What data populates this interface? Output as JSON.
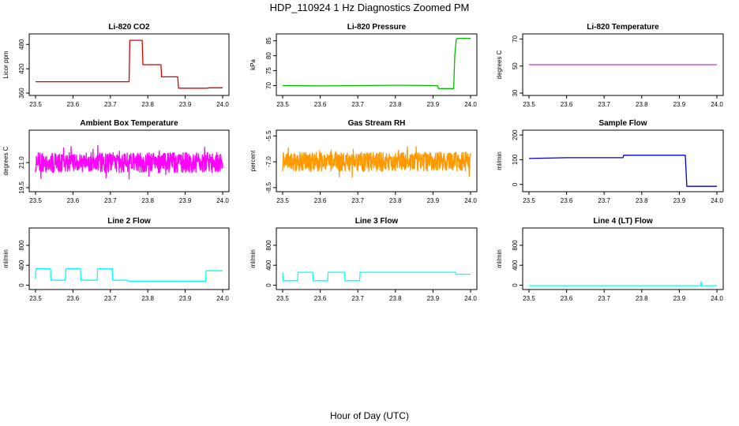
{
  "figure": {
    "title": "HDP_110924  1 Hz Diagnostics Zoomed PM",
    "xlabel": "Hour of Day (UTC)"
  },
  "chart_data": [
    {
      "id": "co2",
      "type": "line",
      "title": "Li-820 CO2",
      "ylabel": "Licor ppm",
      "color": "#dd0000",
      "xlim": [
        23.5,
        24.0
      ],
      "xticks": [
        "23.5",
        "23.6",
        "23.7",
        "23.8",
        "23.9",
        "24.0"
      ],
      "ylim": [
        360,
        500
      ],
      "yticks": [
        "360",
        "420",
        "480"
      ],
      "style": "step",
      "x": [
        23.5,
        23.75,
        23.752,
        23.785,
        23.787,
        23.835,
        23.837,
        23.88,
        23.882,
        23.96,
        23.962,
        24.0
      ],
      "y": [
        388,
        388,
        490,
        490,
        430,
        430,
        400,
        400,
        372,
        372,
        373,
        373
      ]
    },
    {
      "id": "pressure",
      "type": "line",
      "title": "Li-820 Pressure",
      "ylabel": "kPa",
      "color": "#00bb00",
      "xlim": [
        23.5,
        24.0
      ],
      "xticks": [
        "23.5",
        "23.6",
        "23.7",
        "23.8",
        "23.9",
        "24.0"
      ],
      "ylim": [
        67.5,
        86.5
      ],
      "yticks": [
        "70",
        "75",
        "80",
        "85"
      ],
      "style": "step",
      "x": [
        23.5,
        23.6,
        23.7,
        23.8,
        23.912,
        23.915,
        23.955,
        23.958,
        23.962,
        23.965,
        24.0
      ],
      "y": [
        70,
        69.9,
        70,
        70.1,
        70,
        69,
        69,
        80,
        85.5,
        85.8,
        85.8
      ]
    },
    {
      "id": "li820temp",
      "type": "line",
      "title": "Li-820 Temperature",
      "ylabel": "degrees C",
      "color": "#cc33cc",
      "xlim": [
        23.5,
        24.0
      ],
      "xticks": [
        "23.5",
        "23.6",
        "23.7",
        "23.8",
        "23.9",
        "24.0"
      ],
      "ylim": [
        30,
        72
      ],
      "yticks": [
        "30",
        "50",
        "70"
      ],
      "style": "line",
      "x": [
        23.5,
        24.0
      ],
      "y": [
        51,
        51
      ]
    },
    {
      "id": "ambbox",
      "type": "line",
      "title": "Ambient Box Temperature",
      "ylabel": "degrees C",
      "color": "#ff00ff",
      "xlim": [
        23.5,
        24.0
      ],
      "xticks": [
        "23.5",
        "23.6",
        "23.7",
        "23.8",
        "23.9",
        "24.0"
      ],
      "ylim": [
        19.4,
        22.8
      ],
      "yticks": [
        "19.5",
        "21.0"
      ],
      "style": "noise",
      "noise": {
        "base": 21.0,
        "amp": 0.6,
        "spike": 1.1
      }
    },
    {
      "id": "rh",
      "type": "line",
      "title": "Gas Stream RH",
      "ylabel": "percent",
      "color": "#ff9900",
      "xlim": [
        23.5,
        24.0
      ],
      "xticks": [
        "23.5",
        "23.6",
        "23.7",
        "23.8",
        "23.9",
        "24.0"
      ],
      "ylim": [
        -8.6,
        -5.3
      ],
      "yticks": [
        "-8.5",
        "-7.0",
        "-5.5"
      ],
      "style": "noise",
      "noise": {
        "base": -7.0,
        "amp": 0.55,
        "spike": 0.9
      }
    },
    {
      "id": "sample",
      "type": "line",
      "title": "Sample Flow",
      "ylabel": "ml/min",
      "color": "#0000cc",
      "xlim": [
        23.5,
        24.0
      ],
      "xticks": [
        "23.5",
        "23.6",
        "23.7",
        "23.8",
        "23.9",
        "24.0"
      ],
      "ylim": [
        -20,
        210
      ],
      "yticks": [
        "0",
        "100",
        "200"
      ],
      "style": "step",
      "x": [
        23.5,
        23.6,
        23.75,
        23.752,
        23.916,
        23.92,
        24.0
      ],
      "y": [
        105,
        108,
        108,
        118,
        118,
        -8,
        -8
      ]
    },
    {
      "id": "line2",
      "type": "line",
      "title": "Line 2 Flow",
      "ylabel": "ml/min",
      "color": "#00ffff",
      "xlim": [
        23.5,
        24.0
      ],
      "xticks": [
        "23.5",
        "23.6",
        "23.7",
        "23.8",
        "23.9",
        "24.0"
      ],
      "ylim": [
        -40,
        1100
      ],
      "yticks": [
        "0",
        "400",
        "800"
      ],
      "style": "step",
      "x": [
        23.5,
        23.501,
        23.54,
        23.541,
        23.58,
        23.581,
        23.62,
        23.621,
        23.665,
        23.666,
        23.705,
        23.706,
        23.745,
        23.746,
        23.955,
        23.956,
        24.0
      ],
      "y": [
        120,
        330,
        330,
        100,
        100,
        330,
        330,
        100,
        100,
        330,
        330,
        100,
        100,
        80,
        80,
        290,
        290
      ]
    },
    {
      "id": "line3",
      "type": "line",
      "title": "Line 3 Flow",
      "ylabel": "ml/min",
      "color": "#00ffff",
      "xlim": [
        23.5,
        24.0
      ],
      "xticks": [
        "23.5",
        "23.6",
        "23.7",
        "23.8",
        "23.9",
        "24.0"
      ],
      "ylim": [
        -40,
        1100
      ],
      "yticks": [
        "0",
        "400",
        "800"
      ],
      "style": "step",
      "x": [
        23.5,
        23.501,
        23.51,
        23.511,
        23.54,
        23.541,
        23.58,
        23.581,
        23.62,
        23.621,
        23.665,
        23.666,
        23.705,
        23.706,
        23.96,
        23.961,
        24.0
      ],
      "y": [
        260,
        90,
        90,
        90,
        90,
        260,
        260,
        90,
        90,
        260,
        260,
        90,
        90,
        260,
        260,
        220,
        220
      ]
    },
    {
      "id": "line4",
      "type": "line",
      "title": "Line 4 (LT) Flow",
      "ylabel": "ml/min",
      "color": "#00ffff",
      "xlim": [
        23.5,
        24.0
      ],
      "xticks": [
        "23.5",
        "23.6",
        "23.7",
        "23.8",
        "23.9",
        "24.0"
      ],
      "ylim": [
        -40,
        1100
      ],
      "yticks": [
        "0",
        "400",
        "800"
      ],
      "style": "step",
      "x": [
        23.5,
        23.957,
        23.958,
        23.959,
        23.96,
        24.0
      ],
      "y": [
        -10,
        -10,
        70,
        -10,
        -10,
        -10
      ]
    }
  ]
}
